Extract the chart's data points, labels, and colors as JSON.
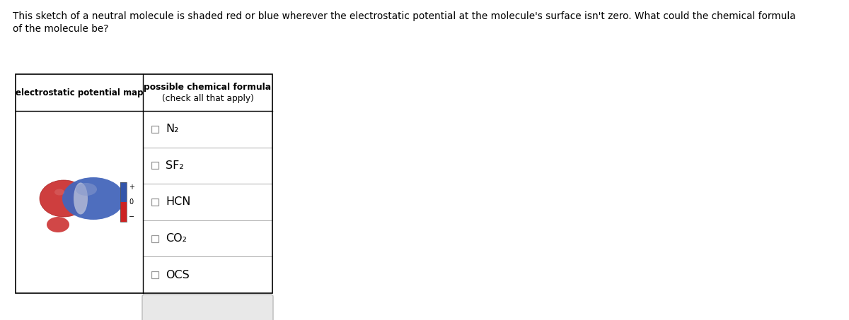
{
  "title_line1": "This sketch of a neutral molecule is shaded red or blue wherever the electrostatic potential at the molecule's surface isn't zero. What could the chemical formula",
  "title_line2": "of the molecule be?",
  "col1_header": "electrostatic potential map",
  "col2_header_bold": "possible chemical formula",
  "col2_header_sub": "(check all that apply)",
  "formulas": [
    {
      "main": "N",
      "sub": "2"
    },
    {
      "main": "SF",
      "sub": "2"
    },
    {
      "main": "HCN",
      "sub": ""
    },
    {
      "main": "CO",
      "sub": "2"
    },
    {
      "main": "OCS",
      "sub": ""
    }
  ],
  "bg_color": "#ffffff",
  "text_color": "#000000",
  "border_color": "#000000",
  "row_divider_color": "#aaaaaa",
  "checkbox_color": "#999999",
  "legend_blue": "#3355aa",
  "legend_red": "#cc2222",
  "mol_blue": "#4466bb",
  "mol_blue_light": "#8899cc",
  "mol_red": "#cc3333",
  "mol_red_dark": "#aa2222",
  "mol_white": "#e8eaf0",
  "button_bg": "#e8e8e8",
  "button_border": "#bbbbbb"
}
